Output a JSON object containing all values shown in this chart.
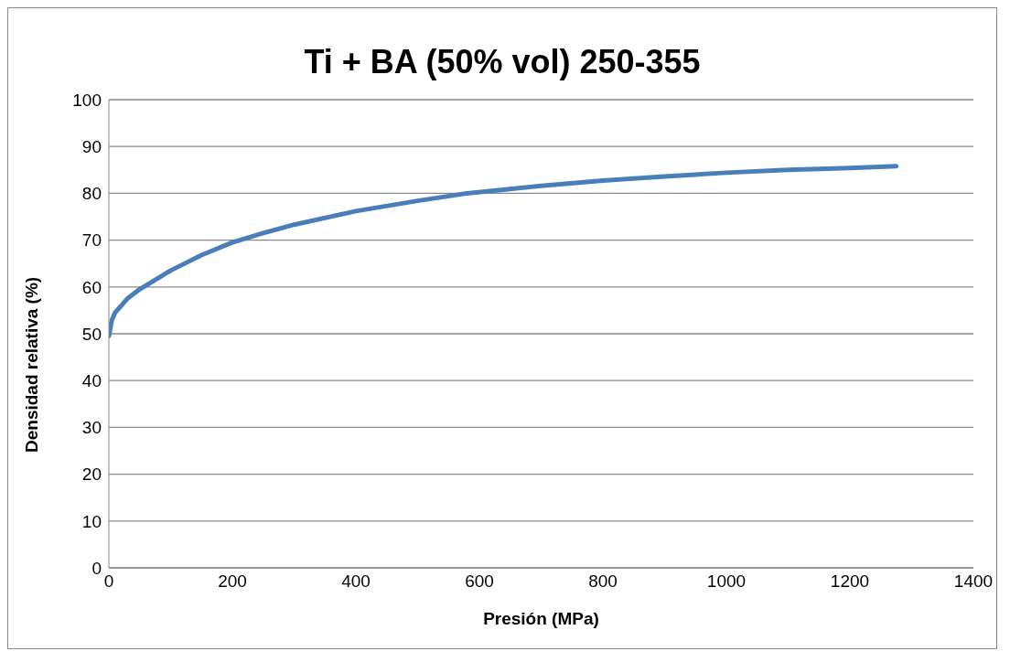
{
  "chart_data": {
    "type": "line",
    "title": "Ti + BA (50% vol) 250-355",
    "xlabel": "Presión (MPa)",
    "ylabel": "Densidad relativa (%)",
    "x": [
      0,
      5,
      10,
      20,
      30,
      50,
      75,
      100,
      150,
      200,
      250,
      300,
      400,
      500,
      580,
      700,
      800,
      900,
      1000,
      1100,
      1200,
      1275
    ],
    "series": [
      {
        "color": "#4a7ebb",
        "values": [
          49.5,
          53,
          54.5,
          56,
          57.5,
          59.5,
          61.5,
          63.5,
          66.8,
          69.5,
          71.5,
          73.3,
          76.2,
          78.4,
          80,
          81.6,
          82.7,
          83.6,
          84.4,
          85,
          85.4,
          85.8
        ]
      }
    ],
    "xlim": [
      0,
      1400
    ],
    "xticks": [
      0,
      200,
      400,
      600,
      800,
      1000,
      1200,
      1400
    ],
    "ylim": [
      0,
      100
    ],
    "yticks": [
      0,
      10,
      20,
      30,
      40,
      50,
      60,
      70,
      80,
      90,
      100
    ],
    "grid": "y",
    "legend": false,
    "marker": "none",
    "line_style": "solid"
  }
}
